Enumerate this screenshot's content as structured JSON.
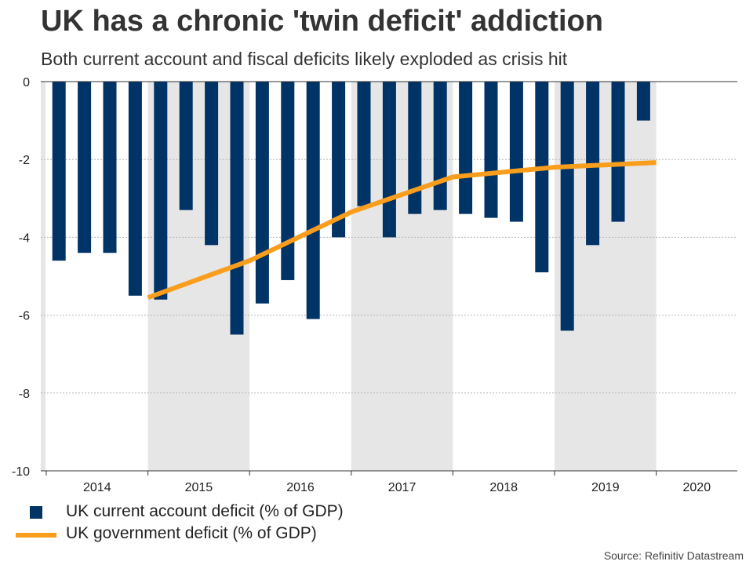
{
  "chart_data": {
    "type": "bar",
    "title": "UK has a chronic 'twin deficit' addiction",
    "subtitle": "Both current account and fiscal deficits likely exploded as crisis hit",
    "source": "Source: Refinitiv Datastream",
    "ylim": [
      -10,
      0
    ],
    "yticks": [
      0,
      -2,
      -4,
      -6,
      -8,
      -10
    ],
    "years": [
      "2014",
      "2015",
      "2016",
      "2017",
      "2018",
      "2019",
      "2020"
    ],
    "shaded_years": [
      "2015",
      "2017",
      "2019"
    ],
    "grid": true,
    "series": [
      {
        "name": "UK current account deficit (% of GDP)",
        "type": "bar",
        "color": "#003366",
        "values": [
          -4.6,
          -4.4,
          -4.4,
          -5.5,
          -5.6,
          -3.3,
          -4.2,
          -6.5,
          -5.7,
          -5.1,
          -6.1,
          -4.0,
          -3.2,
          -4.0,
          -3.4,
          -3.3,
          -3.4,
          -3.5,
          -3.6,
          -4.9,
          -6.4,
          -4.2,
          -3.6,
          -1.0
        ]
      },
      {
        "name": "UK government deficit (% of GDP)",
        "type": "line",
        "color": "#f99d1c",
        "x_index": [
          3.5,
          7.5,
          11.5,
          15.5,
          19.5,
          23.5
        ],
        "values": [
          -5.55,
          -4.6,
          -3.35,
          -2.45,
          -2.2,
          -2.08
        ]
      }
    ]
  }
}
